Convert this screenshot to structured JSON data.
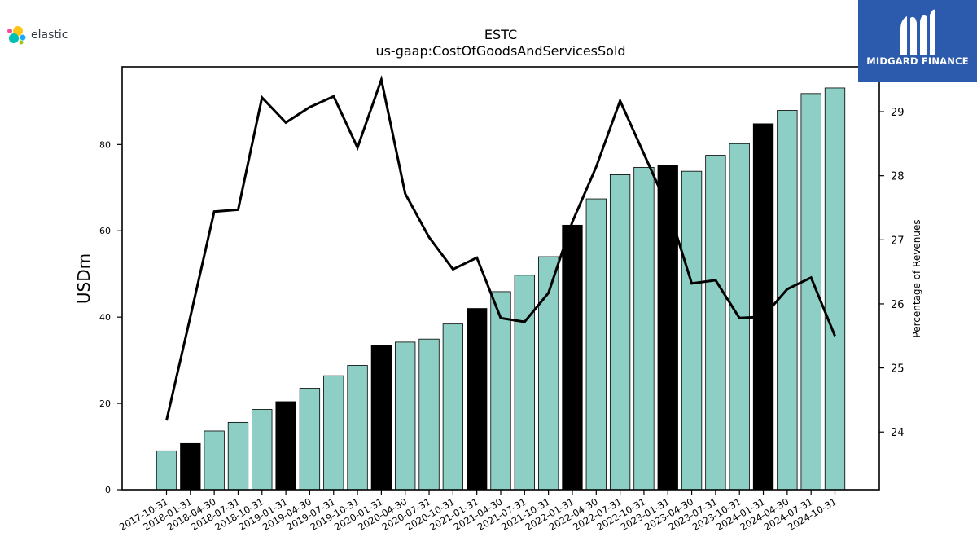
{
  "brand": {
    "left_logo_text": "elastic",
    "right_logo_text": "MIDGARD FINANCE"
  },
  "colors": {
    "bar": "#8ecfc5",
    "bar_highlight": "#000000",
    "line": "#000000",
    "midgard_bg": "#2c5aac"
  },
  "chart_data": {
    "type": "bar",
    "title": "ESTC",
    "subtitle": "us-gaap:CostOfGoodsAndServicesSold",
    "ylabel": "USDm",
    "y2label": "Percentage of Revenues",
    "ylim": [
      0,
      98
    ],
    "y2lim": [
      23.1,
      29.7
    ],
    "yticks": [
      0,
      20,
      40,
      60,
      80
    ],
    "y2ticks": [
      24,
      25,
      26,
      27,
      28,
      29
    ],
    "categories": [
      "2017-10-31",
      "2018-01-31",
      "2018-04-30",
      "2018-07-31",
      "2018-10-31",
      "2019-01-31",
      "2019-04-30",
      "2019-07-31",
      "2019-10-31",
      "2020-01-31",
      "2020-04-30",
      "2020-07-31",
      "2020-10-31",
      "2021-01-31",
      "2021-04-30",
      "2021-07-31",
      "2021-10-31",
      "2022-01-31",
      "2022-04-30",
      "2022-07-31",
      "2022-10-31",
      "2023-01-31",
      "2023-04-30",
      "2023-07-31",
      "2023-10-31",
      "2024-01-31",
      "2024-04-30",
      "2024-07-31",
      "2024-10-31"
    ],
    "series": [
      {
        "type": "bar",
        "values": [
          9.0,
          10.7,
          13.6,
          15.6,
          18.6,
          20.4,
          23.5,
          26.4,
          28.8,
          33.5,
          34.2,
          34.9,
          38.4,
          42.0,
          45.9,
          49.7,
          54.0,
          61.3,
          67.4,
          73.0,
          74.7,
          75.2,
          73.8,
          77.5,
          80.2,
          84.8,
          87.9,
          91.8,
          93.1
        ],
        "highlighted": [
          false,
          true,
          false,
          false,
          false,
          true,
          false,
          false,
          false,
          true,
          false,
          false,
          false,
          true,
          false,
          false,
          false,
          true,
          false,
          false,
          false,
          true,
          false,
          false,
          false,
          true,
          false,
          false,
          false
        ]
      },
      {
        "type": "line",
        "axis": "right",
        "values": [
          24.18,
          25.8,
          27.44,
          27.47,
          29.22,
          28.83,
          29.07,
          29.24,
          28.44,
          29.5,
          27.72,
          27.04,
          26.54,
          26.72,
          25.78,
          25.72,
          26.17,
          27.28,
          28.14,
          29.17,
          28.34,
          27.51,
          26.32,
          26.37,
          25.78,
          25.8,
          26.23,
          26.41,
          25.5
        ]
      }
    ]
  }
}
